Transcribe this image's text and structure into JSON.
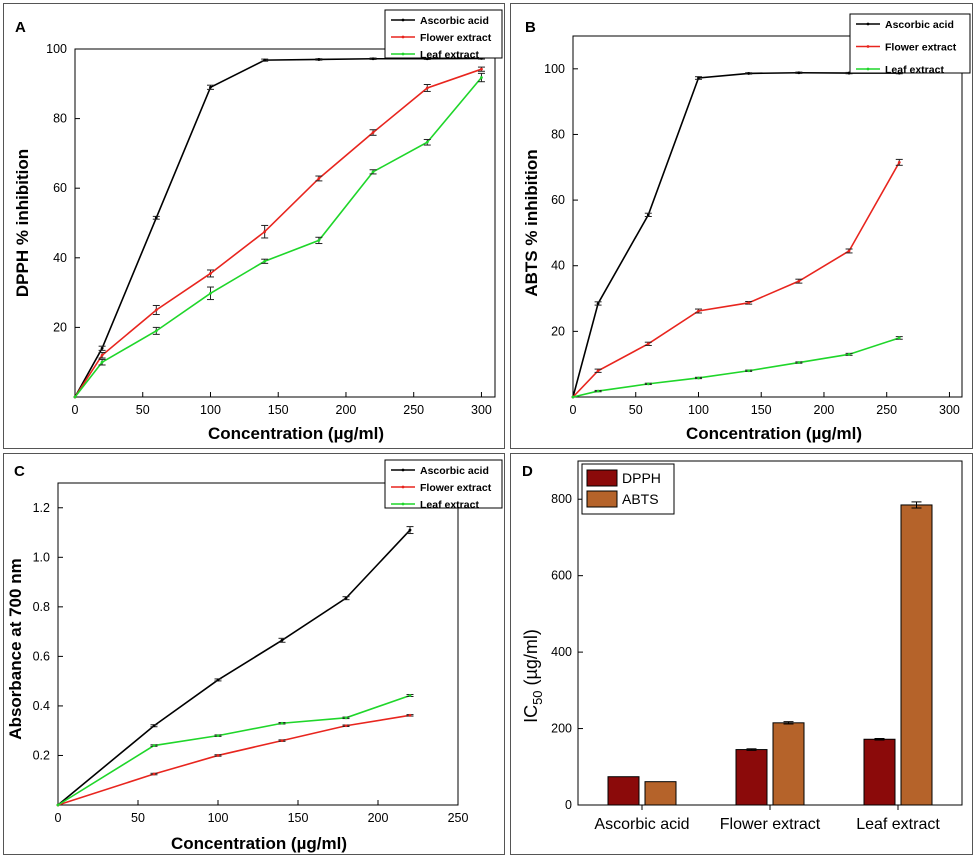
{
  "panels": [
    {
      "id": "A",
      "letter": "A",
      "type": "line",
      "xlabel": "Concentration (µg/ml)",
      "ylabel": "DPPH % inhibition",
      "xlim": [
        0,
        310
      ],
      "ylim": [
        0,
        100
      ],
      "xticks": [
        0,
        50,
        100,
        150,
        200,
        250,
        300
      ],
      "yticks": [
        20,
        40,
        60,
        80,
        100
      ],
      "legend": [
        "Ascorbic acid",
        "Flower extract",
        "Leaf extract"
      ],
      "series": [
        {
          "name": "Ascorbic acid",
          "color": "#000000",
          "x": [
            0,
            20,
            60,
            100,
            140,
            180,
            220,
            260,
            300
          ],
          "y": [
            0,
            14,
            51.5,
            89,
            96.8,
            97,
            97.2,
            97.2,
            97.3
          ],
          "err": [
            0,
            0.6,
            0.4,
            0.6,
            0.3,
            0.2,
            0.2,
            0.2,
            0.2
          ]
        },
        {
          "name": "Flower extract",
          "color": "#e8251e",
          "x": [
            0,
            20,
            60,
            100,
            140,
            180,
            220,
            260,
            300
          ],
          "y": [
            0,
            12,
            25,
            35.5,
            47.5,
            62.8,
            76,
            88.8,
            94.2
          ],
          "err": [
            0,
            0.8,
            1.3,
            1,
            1.8,
            0.7,
            0.8,
            1,
            0.6
          ]
        },
        {
          "name": "Leaf extract",
          "color": "#1fd62a",
          "x": [
            0,
            20,
            60,
            100,
            140,
            180,
            220,
            260,
            300
          ],
          "y": [
            0,
            10,
            19,
            29.8,
            39,
            45,
            64.7,
            73.2,
            91.8
          ],
          "err": [
            0,
            0.8,
            1,
            1.8,
            0.6,
            0.9,
            0.6,
            0.8,
            1.2
          ]
        }
      ]
    },
    {
      "id": "B",
      "letter": "B",
      "type": "line",
      "xlabel": "Concentration (µg/ml)",
      "ylabel": "ABTS % inhibition",
      "xlim": [
        0,
        310
      ],
      "ylim": [
        0,
        110
      ],
      "xticks": [
        0,
        50,
        100,
        150,
        200,
        250,
        300
      ],
      "yticks": [
        20,
        40,
        60,
        80,
        100
      ],
      "legend": [
        "Ascorbic acid",
        "Flower extract",
        "Leaf extract"
      ],
      "series": [
        {
          "name": "Ascorbic acid",
          "color": "#000000",
          "x": [
            0,
            20,
            60,
            100,
            140,
            180,
            220,
            260
          ],
          "y": [
            0,
            28.5,
            55.5,
            97.2,
            98.6,
            98.8,
            98.7,
            98.7
          ],
          "err": [
            0,
            0.5,
            0.5,
            0.4,
            0.2,
            0.2,
            0.2,
            0.2
          ]
        },
        {
          "name": "Flower extract",
          "color": "#e8251e",
          "x": [
            0,
            20,
            60,
            100,
            140,
            180,
            220,
            260
          ],
          "y": [
            0,
            8,
            16.2,
            26.2,
            28.7,
            35.3,
            44.5,
            71.5
          ],
          "err": [
            0,
            0.5,
            0.5,
            0.6,
            0.4,
            0.6,
            0.6,
            0.9
          ]
        },
        {
          "name": "Leaf extract",
          "color": "#1fd62a",
          "x": [
            0,
            20,
            60,
            100,
            140,
            180,
            220,
            260
          ],
          "y": [
            0,
            1.8,
            4,
            5.8,
            8,
            10.5,
            13,
            18
          ],
          "err": [
            0,
            0.2,
            0.2,
            0.2,
            0.2,
            0.2,
            0.3,
            0.4
          ]
        }
      ]
    },
    {
      "id": "C",
      "letter": "C",
      "type": "line",
      "xlabel": "Concentration (µg/ml)",
      "ylabel": "Absorbance at 700 nm",
      "xlim": [
        0,
        250
      ],
      "ylim": [
        0,
        1.3
      ],
      "xticks": [
        0,
        50,
        100,
        150,
        200,
        250
      ],
      "yticks": [
        0.2,
        0.4,
        0.6,
        0.8,
        1.0,
        1.2
      ],
      "legend": [
        "Ascorbic acid",
        "Flower extract",
        "Leaf extract"
      ],
      "series": [
        {
          "name": "Ascorbic acid",
          "color": "#000000",
          "x": [
            0,
            60,
            100,
            140,
            180,
            220
          ],
          "y": [
            0,
            0.32,
            0.505,
            0.665,
            0.835,
            1.11
          ],
          "err": [
            0,
            0.004,
            0.004,
            0.008,
            0.006,
            0.014
          ]
        },
        {
          "name": "Flower extract",
          "color": "#e8251e",
          "x": [
            0,
            60,
            100,
            140,
            180,
            220
          ],
          "y": [
            0,
            0.125,
            0.2,
            0.26,
            0.32,
            0.362
          ],
          "err": [
            0,
            0.003,
            0.003,
            0.003,
            0.003,
            0.003
          ]
        },
        {
          "name": "Leaf extract",
          "color": "#1fd62a",
          "x": [
            0,
            60,
            100,
            140,
            180,
            220
          ],
          "y": [
            0,
            0.24,
            0.28,
            0.33,
            0.352,
            0.442
          ],
          "err": [
            0,
            0.003,
            0.003,
            0.003,
            0.003,
            0.004
          ]
        }
      ]
    }
  ],
  "chart_data": [
    {
      "type": "line",
      "title": "A",
      "xlabel": "Concentration (µg/ml)",
      "ylabel": "DPPH % inhibition",
      "x": [
        0,
        20,
        60,
        100,
        140,
        180,
        220,
        260,
        300
      ],
      "series": [
        {
          "name": "Ascorbic acid",
          "values": [
            0,
            14,
            51.5,
            89,
            96.8,
            97,
            97.2,
            97.2,
            97.3
          ]
        },
        {
          "name": "Flower extract",
          "values": [
            0,
            12,
            25,
            35.5,
            47.5,
            62.8,
            76,
            88.8,
            94.2
          ]
        },
        {
          "name": "Leaf extract",
          "values": [
            0,
            10,
            19,
            29.8,
            39,
            45,
            64.7,
            73.2,
            91.8
          ]
        }
      ],
      "xlim": [
        0,
        310
      ],
      "ylim": [
        0,
        100
      ]
    },
    {
      "type": "line",
      "title": "B",
      "xlabel": "Concentration (µg/ml)",
      "ylabel": "ABTS % inhibition",
      "x": [
        0,
        20,
        60,
        100,
        140,
        180,
        220,
        260
      ],
      "series": [
        {
          "name": "Ascorbic acid",
          "values": [
            0,
            28.5,
            55.5,
            97.2,
            98.6,
            98.8,
            98.7,
            98.7
          ]
        },
        {
          "name": "Flower extract",
          "values": [
            0,
            8,
            16.2,
            26.2,
            28.7,
            35.3,
            44.5,
            71.5
          ]
        },
        {
          "name": "Leaf extract",
          "values": [
            0,
            1.8,
            4,
            5.8,
            8,
            10.5,
            13,
            18
          ]
        }
      ],
      "xlim": [
        0,
        310
      ],
      "ylim": [
        0,
        110
      ]
    },
    {
      "type": "line",
      "title": "C",
      "xlabel": "Concentration (µg/ml)",
      "ylabel": "Absorbance at 700 nm",
      "x": [
        0,
        60,
        100,
        140,
        180,
        220
      ],
      "series": [
        {
          "name": "Ascorbic acid",
          "values": [
            0,
            0.32,
            0.505,
            0.665,
            0.835,
            1.11
          ]
        },
        {
          "name": "Flower extract",
          "values": [
            0,
            0.125,
            0.2,
            0.26,
            0.32,
            0.362
          ]
        },
        {
          "name": "Leaf extract",
          "values": [
            0,
            0.24,
            0.28,
            0.33,
            0.352,
            0.442
          ]
        }
      ],
      "xlim": [
        0,
        250
      ],
      "ylim": [
        0,
        1.3
      ]
    },
    {
      "type": "bar",
      "title": "D",
      "ylabel": "IC50 (µg/ml)",
      "categories": [
        "Ascorbic acid",
        "Flower extract",
        "Leaf extract"
      ],
      "series": [
        {
          "name": "DPPH",
          "values": [
            74,
            145,
            172
          ]
        },
        {
          "name": "ABTS",
          "values": [
            61,
            215,
            785
          ]
        }
      ],
      "ylim": [
        0,
        900
      ]
    }
  ],
  "bar": {
    "letter": "D",
    "ylabel_main": "IC",
    "ylabel_sub": "50",
    "ylabel_unit": " (µg/ml)",
    "categories": [
      "Ascorbic acid",
      "Flower extract",
      "Leaf extract"
    ],
    "yticks": [
      0,
      200,
      400,
      600,
      800
    ],
    "ylim": [
      0,
      900
    ],
    "legend": [
      "DPPH",
      "ABTS"
    ],
    "colors": [
      "#8b0a0a",
      "#b5632a"
    ],
    "series": [
      {
        "name": "DPPH",
        "values": [
          74,
          145,
          172
        ],
        "err": [
          0,
          2,
          2
        ]
      },
      {
        "name": "ABTS",
        "values": [
          61,
          215,
          785
        ],
        "err": [
          0,
          3,
          8
        ]
      }
    ]
  }
}
